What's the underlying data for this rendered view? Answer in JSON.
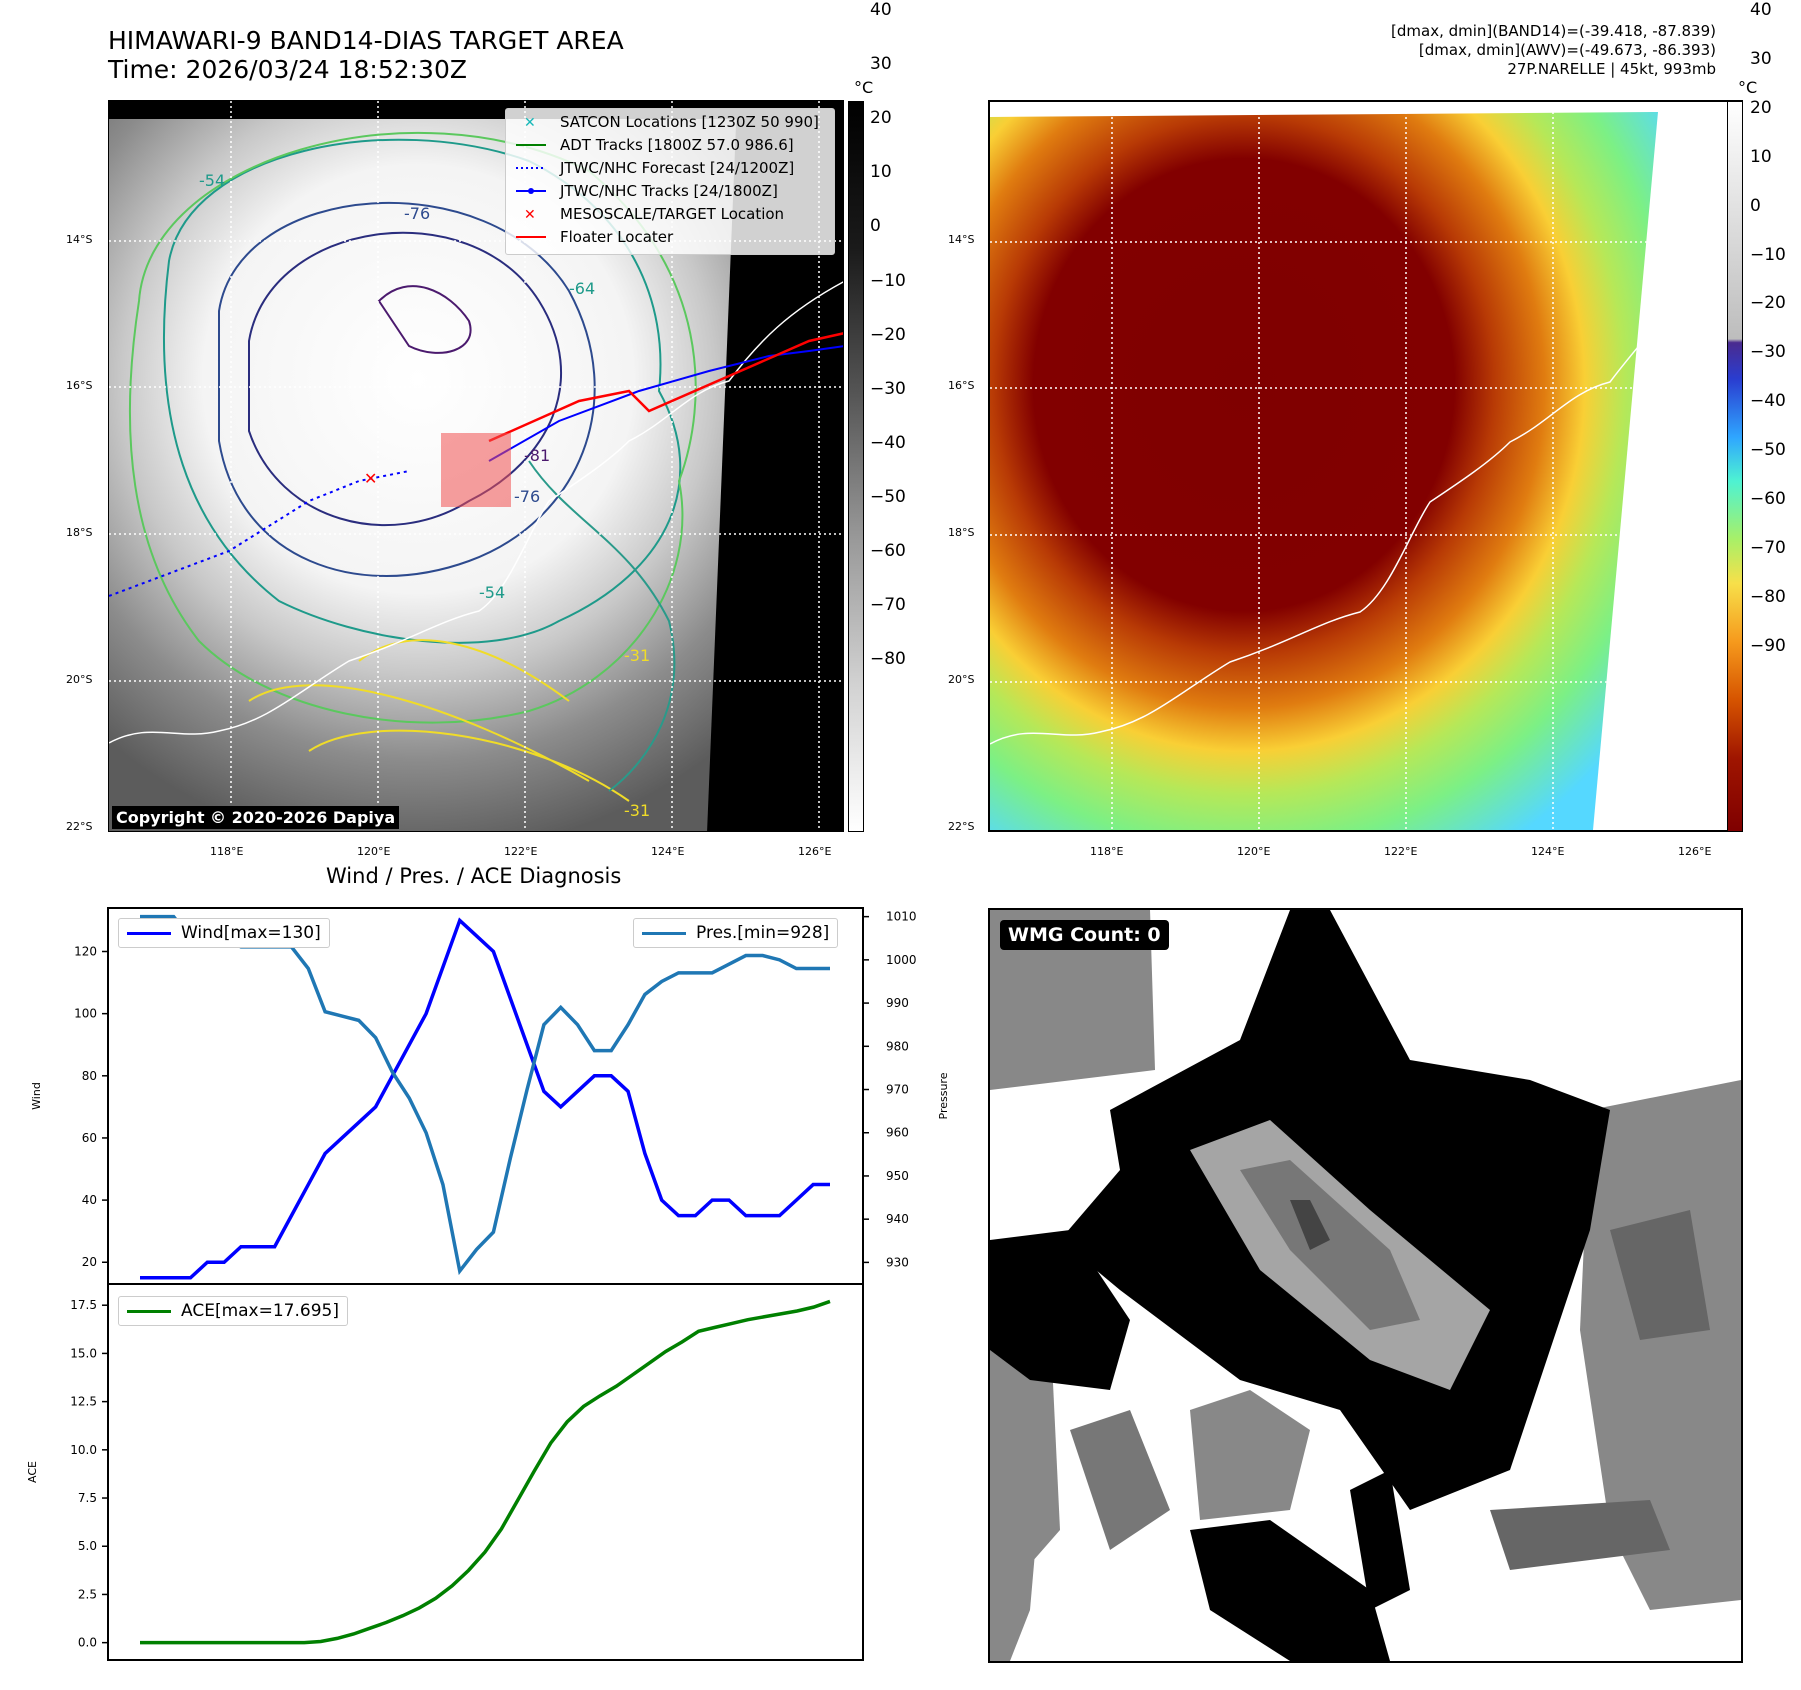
{
  "header": {
    "title_line1": "HIMAWARI-9 BAND14-DIAS TARGET AREA",
    "title_line2": "Time: 2026/03/24 18:52:30Z",
    "stats_line1": "[dmax, dmin](BAND14)=(-39.418, -87.839)",
    "stats_line2": "[dmax, dmin](AWV)=(-49.673, -86.393)",
    "stats_line3": "27P.NARELLE | 45kt, 993mb"
  },
  "map": {
    "lat_labels": [
      "14°S",
      "16°S",
      "18°S",
      "20°S",
      "22°S"
    ],
    "lon_labels": [
      "118°E",
      "120°E",
      "122°E",
      "124°E",
      "126°E"
    ],
    "legend": [
      {
        "label": "SATCON Locations [1230Z 50 990]",
        "color": "#17b8b8",
        "style": "x"
      },
      {
        "label": "ADT Tracks [1800Z 57.0 986.6]",
        "color": "#008000",
        "style": "line"
      },
      {
        "label": "JTWC/NHC Forecast [24/1200Z]",
        "color": "#0000ff",
        "style": "dotted"
      },
      {
        "label": "JTWC/NHC Tracks [24/1800Z]",
        "color": "#0000ff",
        "style": "dot-line"
      },
      {
        "label": "MESOSCALE/TARGET Location",
        "color": "#ff0000",
        "style": "x"
      },
      {
        "label": "Floater Locater",
        "color": "#ff0000",
        "style": "line"
      }
    ],
    "contour_labels": [
      "-54",
      "-76",
      "-64",
      "-81",
      "-76",
      "-54",
      "-31",
      "-31"
    ],
    "copyright": "Copyright © 2020-2026 Dapiya"
  },
  "colorbar_gray": {
    "unit": "°C",
    "ticks": [
      "40",
      "30",
      "20",
      "10",
      "0",
      "−10",
      "−20",
      "−30",
      "−40",
      "−50",
      "−60",
      "−70",
      "−80"
    ]
  },
  "colorbar_awv": {
    "unit": "°C",
    "ticks": [
      "40",
      "30",
      "20",
      "10",
      "0",
      "−10",
      "−20",
      "−30",
      "−40",
      "−50",
      "−60",
      "−70",
      "−80",
      "−90"
    ]
  },
  "chart_data": [
    {
      "type": "line",
      "title": "Wind / Pres. / ACE Diagnosis",
      "ylabel": "Wind",
      "ylabel2": "Pressure",
      "ylim": [
        13,
        134
      ],
      "ylim2": [
        925,
        1012
      ],
      "yticks": [
        20,
        40,
        60,
        80,
        100,
        120
      ],
      "yticks2": [
        930,
        940,
        950,
        960,
        970,
        980,
        990,
        1000,
        1010
      ],
      "series": [
        {
          "name": "Wind[max=130]",
          "color": "#0000ff",
          "axis": "left",
          "values": [
            15,
            15,
            15,
            15,
            20,
            20,
            25,
            25,
            25,
            35,
            45,
            55,
            60,
            65,
            70,
            80,
            90,
            100,
            115,
            130,
            125,
            120,
            105,
            90,
            75,
            70,
            75,
            80,
            80,
            75,
            55,
            40,
            35,
            35,
            40,
            40,
            35,
            35,
            35,
            40,
            45,
            45
          ]
        },
        {
          "name": "Pres.[min=928]",
          "color": "#1f77b4",
          "axis": "right",
          "values": [
            1010,
            1010,
            1010,
            1005,
            1006,
            1005,
            1003,
            1003,
            1003,
            1003,
            998,
            988,
            987,
            986,
            982,
            974,
            968,
            960,
            948,
            928,
            933,
            937,
            954,
            970,
            985,
            989,
            985,
            979,
            979,
            985,
            992,
            995,
            997,
            997,
            997,
            999,
            1001,
            1001,
            1000,
            998,
            998,
            998
          ]
        }
      ]
    },
    {
      "type": "line",
      "ylabel": "ACE",
      "ylim": [
        -0.9,
        18.6
      ],
      "yticks": [
        "0.0",
        "2.5",
        "5.0",
        "7.5",
        "10.0",
        "12.5",
        "15.0",
        "17.5"
      ],
      "series": [
        {
          "name": "ACE[max=17.695]",
          "color": "#008000",
          "values": [
            0,
            0,
            0,
            0,
            0,
            0,
            0,
            0,
            0,
            0,
            0,
            0.06,
            0.22,
            0.45,
            0.75,
            1.05,
            1.4,
            1.8,
            2.3,
            2.95,
            3.75,
            4.7,
            5.9,
            7.4,
            8.9,
            10.35,
            11.45,
            12.25,
            12.8,
            13.3,
            13.9,
            14.5,
            15.1,
            15.6,
            16.15,
            16.35,
            16.55,
            16.75,
            16.9,
            17.05,
            17.2,
            17.4,
            17.695
          ]
        }
      ]
    }
  ],
  "wmg": {
    "count_label": "WMG Count: 0"
  }
}
